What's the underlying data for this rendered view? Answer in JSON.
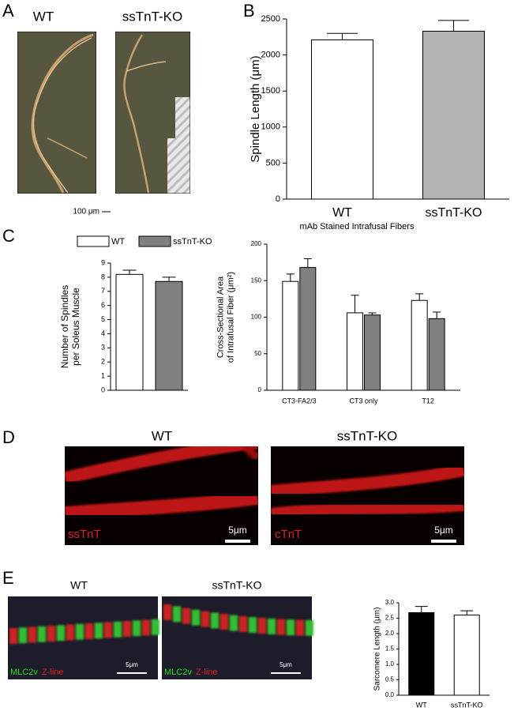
{
  "panels": {
    "A": {
      "letter": "A",
      "titles": [
        "WT",
        "ssTnT-KO"
      ],
      "scale": "100 μm"
    },
    "B": {
      "letter": "B"
    },
    "C": {
      "letter": "C"
    },
    "D": {
      "letter": "D",
      "titles": [
        "WT",
        "ssTnT-KO"
      ],
      "labels": [
        "ssTnT",
        "cTnT"
      ],
      "scale": "5μm"
    },
    "E": {
      "letter": "E",
      "titles": [
        "WT",
        "ssTnT-KO"
      ],
      "stain": [
        "MLC2v",
        "Z-line"
      ],
      "scale": "5μm"
    }
  },
  "chart_data": [
    {
      "type": "bar",
      "ylabel": [
        "Spindle Length (μm)"
      ],
      "categories": [
        "WT",
        "ssTnT-KO"
      ],
      "values": [
        2210,
        2330
      ],
      "errors": [
        90,
        150
      ],
      "colors": [
        "#ffffff",
        "#b3b3b3"
      ],
      "ylim": [
        0,
        2500
      ],
      "yticks": [
        0,
        500,
        1000,
        1500,
        2000,
        2500
      ]
    },
    {
      "type": "bar",
      "ylabel": [
        "Number of Spindles",
        "per Soleus Muscle"
      ],
      "series": [
        {
          "name": "WT",
          "color": "#ffffff",
          "values": [
            8.2
          ],
          "errors": [
            0.3
          ]
        },
        {
          "name": "ssTnT-KO",
          "color": "#808080",
          "values": [
            7.7
          ],
          "errors": [
            0.3
          ]
        }
      ],
      "ylim": [
        0,
        9
      ],
      "yticks": [
        0,
        1,
        2,
        3,
        4,
        5,
        6,
        7,
        8,
        9
      ]
    },
    {
      "type": "bar",
      "title": "mAb Stained Intrafusal Fibers",
      "ylabel": [
        "Cross-Sectional Area",
        "of Intrafusal Fiber (μm²)"
      ],
      "categories": [
        "CT3-FA2/3",
        "CT3 only",
        "T12"
      ],
      "series": [
        {
          "color": "#ffffff",
          "values": [
            149,
            106,
            123
          ],
          "errors": [
            10,
            24,
            9
          ]
        },
        {
          "color": "#808080",
          "values": [
            168,
            103,
            98
          ],
          "errors": [
            12,
            3,
            9
          ]
        }
      ],
      "ylim": [
        0,
        200
      ],
      "yticks": [
        0,
        50,
        100,
        150,
        200
      ]
    },
    {
      "type": "bar",
      "ylabel": [
        "Sarcomere Length (μm)"
      ],
      "categories": [
        "WT",
        "ssTnT-KO"
      ],
      "values": [
        2.68,
        2.6
      ],
      "errors": [
        0.2,
        0.14
      ],
      "colors": [
        "#000000",
        "#ffffff"
      ],
      "ylim": [
        0,
        3.0
      ],
      "yticks": [
        {
          "value": 0,
          "label": "0.0"
        },
        0.5,
        {
          "value": 1,
          "label": "1.0"
        },
        1.5,
        {
          "value": 2,
          "label": "2.0"
        },
        2.5,
        {
          "value": 3,
          "label": "3.0"
        }
      ]
    }
  ]
}
